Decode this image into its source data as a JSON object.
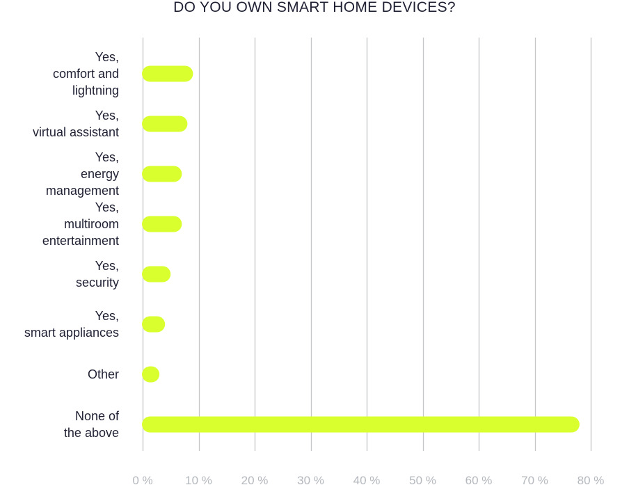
{
  "chart_data": {
    "type": "bar",
    "orientation": "horizontal",
    "title": "DO YOU OWN SMART HOME DEVICES?",
    "categories": [
      [
        "Yes,",
        "comfort and",
        "lightning"
      ],
      [
        "Yes,",
        "virtual assistant"
      ],
      [
        "Yes,",
        "energy",
        "management"
      ],
      [
        "Yes,",
        "multiroom",
        "entertainment"
      ],
      [
        "Yes,",
        "security"
      ],
      [
        "Yes,",
        "smart appliances"
      ],
      [
        "Other"
      ],
      [
        "None of",
        "the above"
      ]
    ],
    "values": [
      9,
      8,
      7,
      7,
      5,
      4,
      3,
      78
    ],
    "xlim": [
      0,
      80
    ],
    "x_ticks": [
      0,
      10,
      20,
      30,
      40,
      50,
      60,
      70,
      80
    ],
    "x_tick_labels": [
      "0 %",
      "10 %",
      "20 %",
      "30 %",
      "40 %",
      "50 %",
      "60 %",
      "70 %",
      "80 %"
    ],
    "xlabel": "",
    "ylabel": "",
    "grid": true,
    "legend": "none",
    "colors": {
      "bar": "#d9ff2e",
      "grid": "#c4c6c8",
      "label": "#1f2033",
      "tick": "#b4b8bd"
    }
  }
}
